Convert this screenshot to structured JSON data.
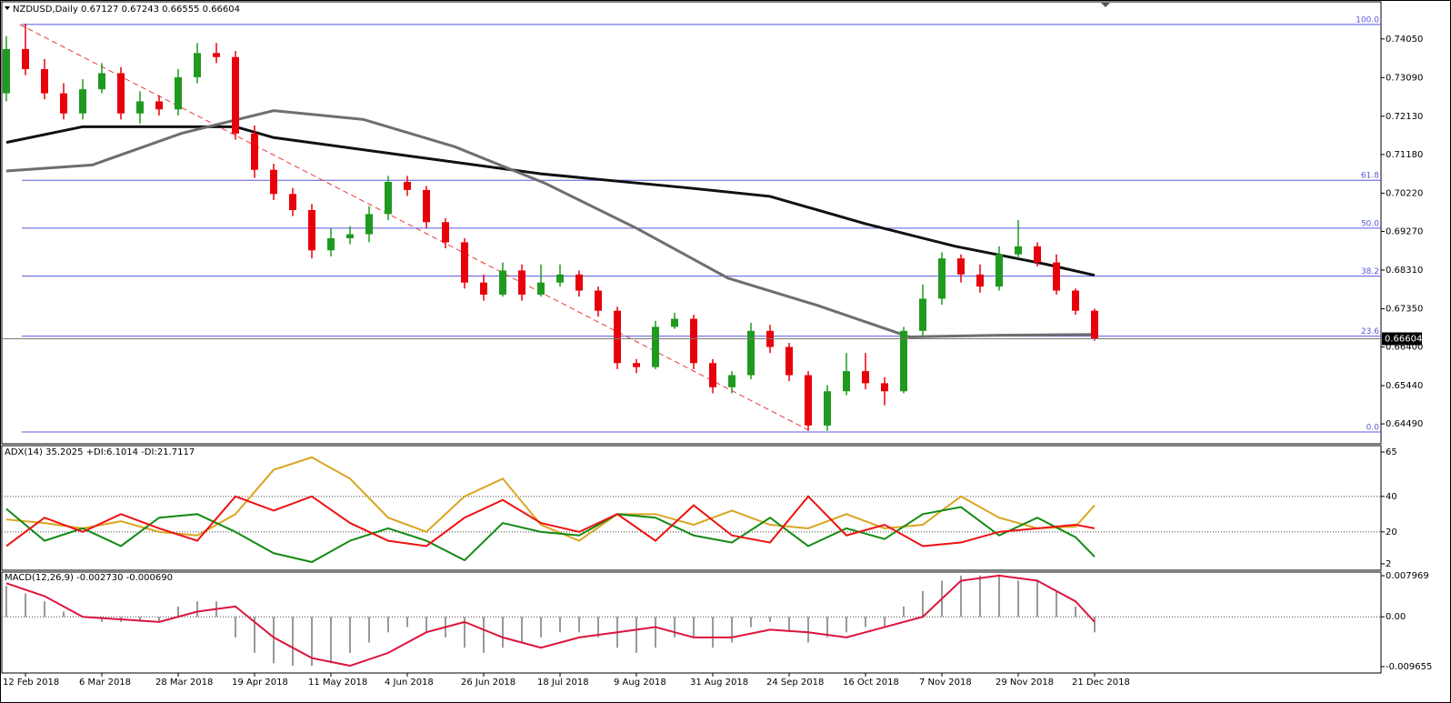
{
  "chart_data": [
    {
      "type": "candlestick",
      "title": "NZDUSD,Daily  0.67127 0.67243 0.66555 0.66604",
      "categories": [
        null,
        "12 Feb 2018",
        null,
        null,
        null,
        "6 Mar 2018",
        null,
        null,
        null,
        "28 Mar 2018",
        null,
        null,
        null,
        "19 Apr 2018",
        null,
        null,
        null,
        "11 May 2018",
        null,
        null,
        null,
        "4 Jun 2018",
        null,
        null,
        null,
        "26 Jun 2018",
        null,
        null,
        null,
        "18 Jul 2018",
        null,
        null,
        null,
        "9 Aug 2018",
        null,
        null,
        null,
        "31 Aug 2018",
        null,
        null,
        null,
        "24 Sep 2018",
        null,
        null,
        null,
        "16 Oct 2018",
        null,
        null,
        null,
        "7 Nov 2018",
        null,
        null,
        null,
        "29 Nov 2018",
        null,
        null,
        null,
        "21 Dec 2018"
      ],
      "open": [
        0.727,
        0.738,
        0.733,
        0.727,
        0.722,
        0.728,
        0.732,
        0.722,
        0.725,
        0.723,
        0.731,
        0.737,
        0.736,
        0.717,
        0.708,
        0.702,
        0.698,
        0.688,
        0.691,
        0.692,
        0.697,
        0.705,
        0.703,
        0.695,
        0.69,
        0.68,
        0.677,
        0.683,
        0.677,
        0.68,
        0.682,
        0.678,
        0.673,
        0.66,
        0.659,
        0.669,
        0.671,
        0.66,
        0.654,
        0.657,
        0.668,
        0.664,
        0.657,
        0.6445,
        0.653,
        0.658,
        0.655,
        0.653,
        0.668,
        0.676,
        0.686,
        0.682,
        0.679,
        0.687,
        0.689,
        0.685,
        0.678,
        0.673
      ],
      "high": [
        0.7412,
        0.7443,
        0.7355,
        0.7295,
        0.7305,
        0.7345,
        0.7335,
        0.7275,
        0.7265,
        0.733,
        0.7395,
        0.7395,
        0.7375,
        0.719,
        0.7095,
        0.7035,
        0.6995,
        0.6935,
        0.694,
        0.699,
        0.7065,
        0.7065,
        0.704,
        0.696,
        0.691,
        0.682,
        0.685,
        0.6845,
        0.6845,
        0.6845,
        0.683,
        0.679,
        0.674,
        0.661,
        0.6705,
        0.6725,
        0.672,
        0.661,
        0.658,
        0.67,
        0.6695,
        0.665,
        0.658,
        0.6545,
        0.6625,
        0.6625,
        0.6565,
        0.669,
        0.6795,
        0.6875,
        0.687,
        0.6845,
        0.689,
        0.6955,
        0.69,
        0.687,
        0.6785,
        0.6735
      ],
      "low": [
        0.725,
        0.7315,
        0.7255,
        0.7205,
        0.7205,
        0.727,
        0.7205,
        0.7195,
        0.7215,
        0.7215,
        0.7295,
        0.7345,
        0.7155,
        0.706,
        0.7005,
        0.6965,
        0.686,
        0.6865,
        0.6895,
        0.69,
        0.6955,
        0.7015,
        0.6935,
        0.6885,
        0.6785,
        0.6755,
        0.6765,
        0.6755,
        0.6765,
        0.679,
        0.6765,
        0.6715,
        0.6585,
        0.6575,
        0.6585,
        0.6685,
        0.6585,
        0.6525,
        0.6525,
        0.656,
        0.6625,
        0.6555,
        0.6432,
        0.6432,
        0.652,
        0.6535,
        0.6495,
        0.6525,
        0.6665,
        0.6745,
        0.68,
        0.6775,
        0.678,
        0.686,
        0.684,
        0.677,
        0.672,
        0.66555
      ],
      "close": [
        0.738,
        0.733,
        0.727,
        0.722,
        0.728,
        0.732,
        0.722,
        0.725,
        0.723,
        0.731,
        0.737,
        0.736,
        0.717,
        0.708,
        0.702,
        0.698,
        0.688,
        0.691,
        0.692,
        0.697,
        0.705,
        0.703,
        0.695,
        0.69,
        0.68,
        0.677,
        0.683,
        0.677,
        0.68,
        0.682,
        0.678,
        0.673,
        0.66,
        0.659,
        0.669,
        0.671,
        0.66,
        0.654,
        0.657,
        0.668,
        0.664,
        0.657,
        0.6445,
        0.653,
        0.658,
        0.655,
        0.653,
        0.668,
        0.676,
        0.686,
        0.682,
        0.679,
        0.687,
        0.689,
        0.685,
        0.678,
        0.673,
        0.66604
      ],
      "up_color": "#1f9a1f",
      "down_color": "#e8000b",
      "ylim": [
        0.63995,
        0.74972
      ],
      "yticks": [
        {
          "value": 0.7405,
          "label": "0.74050"
        },
        {
          "value": 0.7309,
          "label": "0.73090"
        },
        {
          "value": 0.7213,
          "label": "0.72130"
        },
        {
          "value": 0.7118,
          "label": "0.71180"
        },
        {
          "value": 0.7022,
          "label": "0.70220"
        },
        {
          "value": 0.6927,
          "label": "0.69270"
        },
        {
          "value": 0.6831,
          "label": "0.68310"
        },
        {
          "value": 0.6735,
          "label": "0.67350"
        },
        {
          "value": 0.664,
          "label": "0.66400"
        },
        {
          "value": 0.6544,
          "label": "0.65440"
        },
        {
          "value": 0.6449,
          "label": "0.64490"
        }
      ],
      "last_price": 0.66604,
      "overlays": [
        {
          "color": "#111111",
          "x": [
            0,
            4,
            12,
            14,
            21,
            28,
            35.5,
            40,
            45,
            49.7,
            54.5,
            57
          ],
          "values": [
            0.7148,
            0.7187,
            0.7187,
            0.716,
            0.7115,
            0.707,
            0.7036,
            0.7014,
            0.6946,
            0.689,
            0.6845,
            0.6818
          ]
        },
        {
          "color": "#6e6e6e",
          "x": [
            0,
            4.5,
            9.2,
            14,
            18.7,
            23.5,
            28.2,
            33,
            37.8,
            42.5,
            47.3,
            52,
            57
          ],
          "values": [
            0.7077,
            0.7092,
            0.7171,
            0.7227,
            0.7205,
            0.7137,
            0.7047,
            0.6935,
            0.6811,
            0.6743,
            0.6665,
            0.6669,
            0.6671
          ]
        }
      ],
      "trendline": {
        "color": "#e83a3a",
        "x": [
          0.7,
          42.2
        ],
        "values": [
          0.7441,
          0.6429
        ]
      },
      "level_color": "#5858e0",
      "levels": [
        {
          "value": 0.7441,
          "label": "100.0"
        },
        {
          "value": 0.7054,
          "label": "61.8"
        },
        {
          "value": 0.6935,
          "label": "50.0"
        },
        {
          "value": 0.6816,
          "label": "38.2"
        },
        {
          "value": 0.6667,
          "label": "23.6"
        },
        {
          "value": 0.6429,
          "label": "0.0"
        }
      ]
    },
    {
      "type": "line",
      "title": "ADX(14) 35.2025 +DI:6.1014 -DI:21.7117",
      "x": [
        0,
        2,
        4,
        6,
        8,
        10,
        12,
        14,
        16,
        18,
        20,
        22,
        24,
        26,
        28,
        30,
        32,
        34,
        36,
        38,
        40,
        42,
        44,
        46,
        48,
        50,
        52,
        54,
        56,
        57
      ],
      "series": [
        {
          "color": "#daa520",
          "values": [
            27,
            25,
            22,
            26,
            20,
            18,
            30,
            55,
            62,
            50,
            28,
            20,
            40,
            50,
            24,
            15,
            30,
            30,
            24,
            32,
            24,
            22,
            30,
            22,
            24,
            40,
            28,
            22,
            23,
            35
          ]
        },
        {
          "color": "#138a13",
          "values": [
            33,
            15,
            22,
            12,
            28,
            30,
            20,
            8,
            3,
            15,
            22,
            15,
            4,
            25,
            20,
            18,
            30,
            28,
            18,
            14,
            28,
            12,
            22,
            16,
            30,
            34,
            18,
            28,
            17,
            6
          ]
        },
        {
          "color": "#ee1111",
          "values": [
            12,
            28,
            20,
            30,
            22,
            15,
            40,
            32,
            40,
            25,
            15,
            12,
            28,
            38,
            25,
            20,
            30,
            15,
            35,
            18,
            14,
            40,
            18,
            24,
            12,
            14,
            20,
            22,
            24,
            22
          ]
        }
      ],
      "ylim": [
        -1.6,
        68.6
      ],
      "yticks": [
        65,
        40,
        20,
        2
      ],
      "grid": "dotted"
    },
    {
      "type": "macd",
      "title": "MACD(12,26,9) -0.002730 -0.000690",
      "histogram": {
        "color": "#333333",
        "values": [
          0.006,
          0.0045,
          0.003,
          0.001,
          0,
          -0.001,
          -0.001,
          -0.001,
          -0.001,
          0.002,
          0.003,
          0.003,
          -0.004,
          -0.007,
          -0.009,
          -0.0095,
          -0.0095,
          -0.009,
          -0.007,
          -0.005,
          -0.003,
          -0.002,
          -0.003,
          -0.004,
          -0.006,
          -0.007,
          -0.006,
          -0.005,
          -0.004,
          -0.003,
          -0.003,
          -0.004,
          -0.006,
          -0.007,
          -0.006,
          -0.004,
          -0.004,
          -0.006,
          -0.005,
          -0.002,
          -0.001,
          -0.003,
          -0.005,
          -0.004,
          -0.003,
          -0.002,
          -0.002,
          0.002,
          0.005,
          0.007,
          0.008,
          0.008,
          0.008,
          0.007,
          0.007,
          0.005,
          0.002,
          -0.003
        ]
      },
      "signal": {
        "color": "#dc143c",
        "x": [
          0,
          2,
          4,
          6,
          8,
          10,
          12,
          14,
          16,
          18,
          20,
          22,
          24,
          26,
          28,
          30,
          32,
          34,
          36,
          38,
          40,
          42,
          44,
          46,
          48,
          50,
          52,
          54,
          56,
          57
        ],
        "values": [
          0.0065,
          0.004,
          0.0,
          -0.0005,
          -0.001,
          0.001,
          0.002,
          -0.004,
          -0.008,
          -0.0095,
          -0.007,
          -0.003,
          -0.001,
          -0.004,
          -0.006,
          -0.004,
          -0.003,
          -0.002,
          -0.004,
          -0.004,
          -0.0025,
          -0.003,
          -0.004,
          -0.002,
          0.0,
          0.007,
          0.008,
          0.007,
          0.003,
          -0.001
        ]
      },
      "ylim": [
        -0.0109,
        0.00868
      ],
      "yticks": [
        0.007969,
        {
          "value": 0,
          "label": "0.00"
        },
        -0.009655
      ],
      "grid": "dotted"
    }
  ]
}
